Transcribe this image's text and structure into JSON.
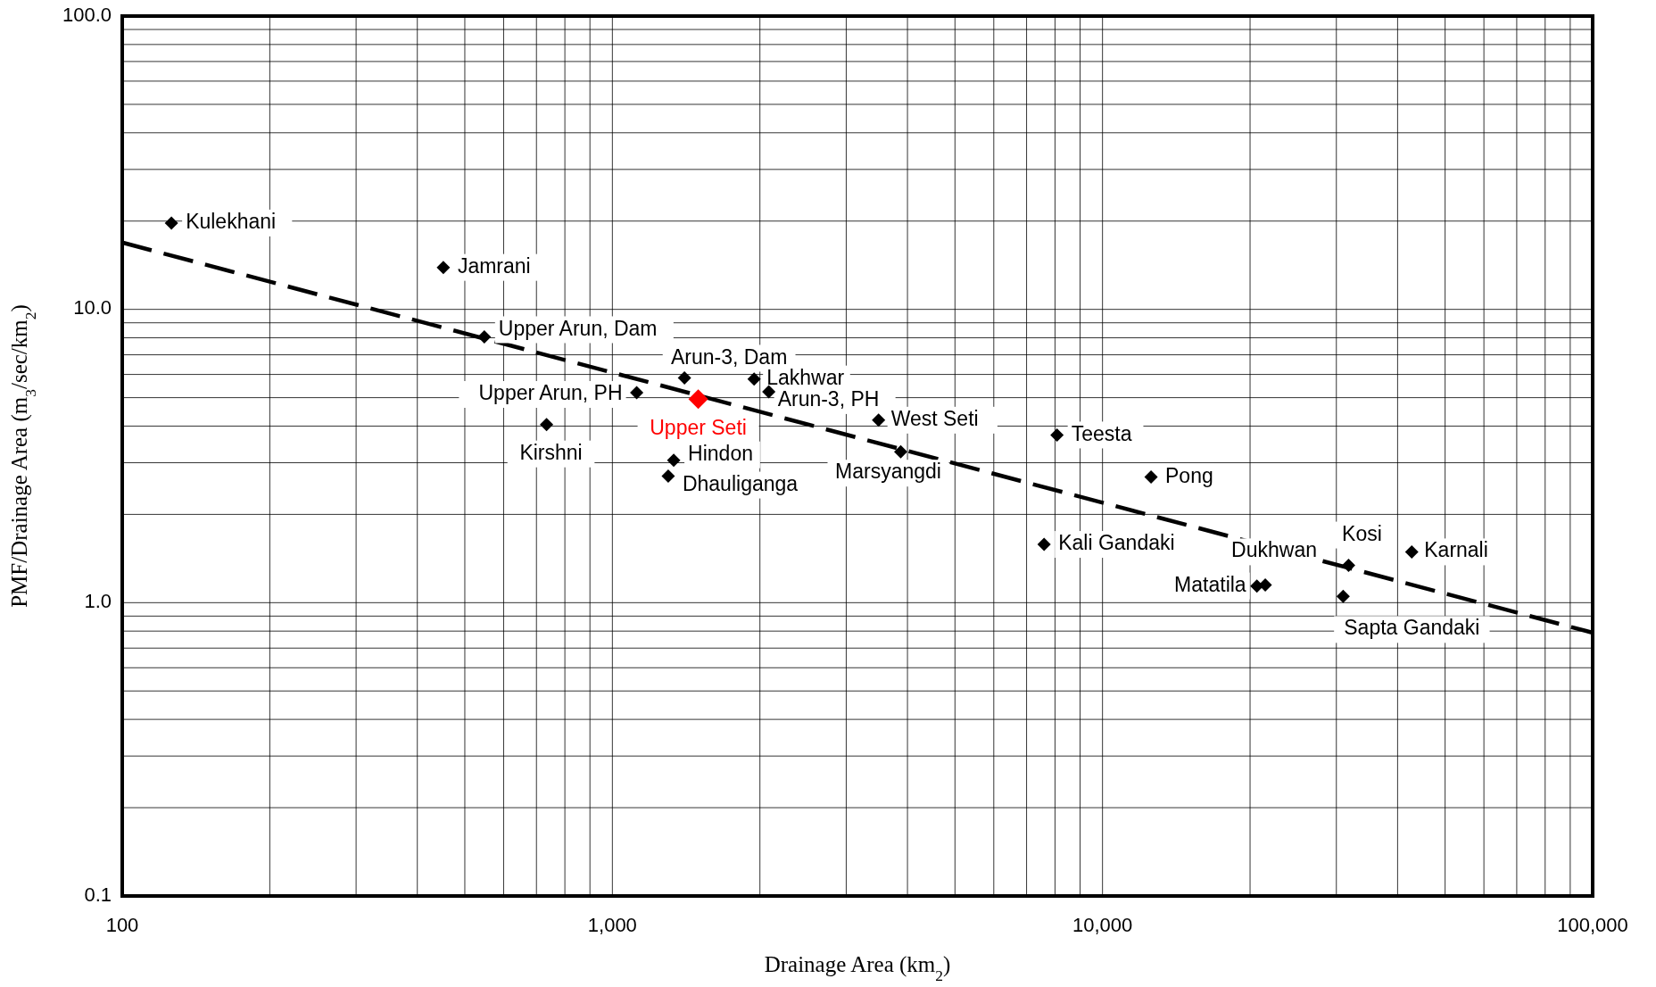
{
  "chart_data": {
    "type": "scatter",
    "xlabel": "Drainage Area (km$_{2}$)",
    "ylabel": "PMF/Drainage Area (m$_{3}$/sec/km$_{2}$)",
    "log": "xy",
    "grid": true,
    "marker": "diamond",
    "xlim": [
      100,
      100000
    ],
    "ylim": [
      0.1,
      100
    ],
    "xticks": [
      {
        "value": 100,
        "label": "100"
      },
      {
        "value": 200,
        "label": null
      },
      {
        "value": 300,
        "label": null
      },
      {
        "value": 400,
        "label": null
      },
      {
        "value": 500,
        "label": null
      },
      {
        "value": 600,
        "label": null
      },
      {
        "value": 700,
        "label": null
      },
      {
        "value": 800,
        "label": null
      },
      {
        "value": 900,
        "label": null
      },
      {
        "value": 1000,
        "label": "1,000"
      },
      {
        "value": 2000,
        "label": null
      },
      {
        "value": 3000,
        "label": null
      },
      {
        "value": 4000,
        "label": null
      },
      {
        "value": 5000,
        "label": null
      },
      {
        "value": 6000,
        "label": null
      },
      {
        "value": 7000,
        "label": null
      },
      {
        "value": 8000,
        "label": null
      },
      {
        "value": 9000,
        "label": null
      },
      {
        "value": 10000,
        "label": "10,000"
      },
      {
        "value": 20000,
        "label": null
      },
      {
        "value": 30000,
        "label": null
      },
      {
        "value": 40000,
        "label": null
      },
      {
        "value": 50000,
        "label": null
      },
      {
        "value": 60000,
        "label": null
      },
      {
        "value": 70000,
        "label": null
      },
      {
        "value": 80000,
        "label": null
      },
      {
        "value": 90000,
        "label": null
      },
      {
        "value": 100000,
        "label": "100,000"
      }
    ],
    "yticks": [
      {
        "value": 0.1,
        "label": "0.1"
      },
      {
        "value": 0.2,
        "label": null
      },
      {
        "value": 0.3,
        "label": null
      },
      {
        "value": 0.4,
        "label": null
      },
      {
        "value": 0.5,
        "label": null
      },
      {
        "value": 0.6,
        "label": null
      },
      {
        "value": 0.7,
        "label": null
      },
      {
        "value": 0.8,
        "label": null
      },
      {
        "value": 0.9,
        "label": null
      },
      {
        "value": 1,
        "label": "1.0"
      },
      {
        "value": 2,
        "label": null
      },
      {
        "value": 3,
        "label": null
      },
      {
        "value": 4,
        "label": null
      },
      {
        "value": 5,
        "label": null
      },
      {
        "value": 6,
        "label": null
      },
      {
        "value": 7,
        "label": null
      },
      {
        "value": 8,
        "label": null
      },
      {
        "value": 9,
        "label": null
      },
      {
        "value": 10,
        "label": "10.0"
      },
      {
        "value": 20,
        "label": null
      },
      {
        "value": 30,
        "label": null
      },
      {
        "value": 40,
        "label": null
      },
      {
        "value": 50,
        "label": null
      },
      {
        "value": 60,
        "label": null
      },
      {
        "value": 70,
        "label": null
      },
      {
        "value": 80,
        "label": null
      },
      {
        "value": 90,
        "label": null
      },
      {
        "value": 100,
        "label": "100.0"
      }
    ],
    "series": [
      {
        "type": "line",
        "color": "#000000",
        "line_style": "dashed",
        "marker": "none",
        "x": [
          100,
          100000
        ],
        "values": [
          16.9,
          0.79
        ]
      },
      {
        "color": "#000000",
        "x": [
          126,
          452,
          548,
          1121,
          1403,
          1946,
          2085,
          3492,
          734,
          1334,
          1300,
          3875,
          8075,
          12560,
          7600,
          21480,
          20650,
          31770,
          42750,
          30970
        ],
        "values": [
          19.7,
          13.9,
          8.06,
          5.2,
          5.84,
          5.79,
          5.24,
          4.19,
          4.05,
          3.06,
          2.7,
          3.27,
          3.73,
          2.68,
          1.58,
          1.15,
          1.14,
          1.34,
          1.49,
          1.05
        ]
      },
      {
        "name": "Upper Seti",
        "color": "#ff0000",
        "x": [
          1497
        ],
        "values": [
          4.94
        ]
      }
    ],
    "annotations": [
      {
        "text": "Kulekhani",
        "x": 126,
        "y": 19.7
      },
      {
        "text": "Jamrani",
        "x": 452,
        "y": 13.9
      },
      {
        "text": "Upper Arun, Dam",
        "x": 548,
        "y": 8.06
      },
      {
        "text": "Upper Arun, PH",
        "x": 1121,
        "y": 5.2
      },
      {
        "text": "Arun-3, Dam",
        "x": 1403,
        "y": 5.84
      },
      {
        "text": "Lakhwar",
        "x": 1946,
        "y": 5.79
      },
      {
        "text": "Arun-3, PH",
        "x": 2085,
        "y": 5.24
      },
      {
        "text": "West Seti",
        "x": 3492,
        "y": 4.19
      },
      {
        "text": "Kirshni",
        "x": 734,
        "y": 4.05
      },
      {
        "text": "Hindon",
        "x": 1334,
        "y": 3.06
      },
      {
        "text": "Dhauliganga",
        "x": 1300,
        "y": 2.7
      },
      {
        "text": "Marsyangdi",
        "x": 3875,
        "y": 3.27
      },
      {
        "text": "Teesta",
        "x": 8075,
        "y": 3.73
      },
      {
        "text": "Pong",
        "x": 12560,
        "y": 2.68
      },
      {
        "text": "Kali Gandaki",
        "x": 7600,
        "y": 1.58
      },
      {
        "text": "Dukhwan",
        "x": 21480,
        "y": 1.15
      },
      {
        "text": "Matatila",
        "x": 20650,
        "y": 1.14
      },
      {
        "text": "Kosi",
        "x": 31770,
        "y": 1.34
      },
      {
        "text": "Karnali",
        "x": 42750,
        "y": 1.49
      },
      {
        "text": "Sapta Gandaki",
        "x": 30970,
        "y": 1.05
      }
    ]
  }
}
